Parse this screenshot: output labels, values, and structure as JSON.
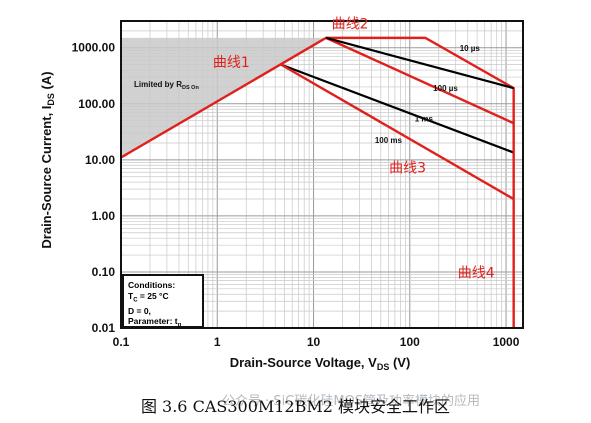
{
  "chart_data": {
    "type": "line",
    "xscale": "log",
    "yscale": "log",
    "xlim": [
      0.1,
      1500
    ],
    "ylim": [
      0.01,
      3000
    ],
    "xlabel": "Drain-Source Voltage, V",
    "xlabel_sub": "DS",
    "xlabel_unit": "(V)",
    "ylabel": "Drain-Source Current, I",
    "ylabel_sub": "DS",
    "ylabel_unit": "(A)",
    "x_ticks": [
      {
        "value": 0.1,
        "label": "0.1"
      },
      {
        "value": 1,
        "label": "1"
      },
      {
        "value": 10,
        "label": "10"
      },
      {
        "value": 100,
        "label": "100"
      },
      {
        "value": 1000,
        "label": "1000"
      }
    ],
    "y_ticks": [
      {
        "value": 1000,
        "label": "1000.00"
      },
      {
        "value": 100,
        "label": "100.00"
      },
      {
        "value": 10,
        "label": "10.00"
      },
      {
        "value": 1,
        "label": "1.00"
      },
      {
        "value": 0.1,
        "label": "0.10"
      },
      {
        "value": 0.01,
        "label": "0.01"
      }
    ],
    "grid": true,
    "rds_region": {
      "label": "Limited by R",
      "label_sub": "DS On",
      "points": [
        [
          0.1,
          1500
        ],
        [
          13.5,
          1500
        ],
        [
          0.1,
          11
        ]
      ]
    },
    "series": [
      {
        "name": "",
        "color": "#000000",
        "points": [
          [
            4.6,
            500
          ],
          [
            1200,
            13.5
          ]
        ]
      },
      {
        "name": "",
        "color": "#e0201c",
        "points": [
          [
            0.1,
            11
          ],
          [
            13.5,
            1500
          ],
          [
            145,
            1500
          ],
          [
            1200,
            190
          ],
          [
            1200,
            0.01
          ]
        ]
      },
      {
        "name": "",
        "color": "#e0201c",
        "points": [
          [
            13.5,
            1500
          ],
          [
            1200,
            45
          ]
        ]
      },
      {
        "name": "",
        "color": "#e0201c",
        "points": [
          [
            4.6,
            500
          ],
          [
            1200,
            2
          ]
        ]
      },
      {
        "name": "",
        "color": "#000000",
        "points": [
          [
            13.5,
            1500
          ],
          [
            1200,
            190
          ]
        ]
      }
    ],
    "annotations": [
      {
        "text": "10 µs",
        "x": 420,
        "y": 870
      },
      {
        "text": "100 µs",
        "x": 235,
        "y": 170
      },
      {
        "text": "1 ms",
        "x": 140,
        "y": 48
      },
      {
        "text": "100 ms",
        "x": 60,
        "y": 20
      }
    ],
    "red_labels": [
      {
        "text": "曲线1",
        "x": 1.4,
        "y": 450
      },
      {
        "text": "曲线2",
        "x": 24,
        "y": 2200
      },
      {
        "text": "曲线3",
        "x": 95,
        "y": 6
      },
      {
        "text": "曲线4",
        "x": 490,
        "y": 0.08
      }
    ],
    "conditions": {
      "title": "Conditions:",
      "lines": [
        "T",
        "D = 0,",
        "Parameter: t"
      ],
      "tc_sub": "C",
      "tc_value": " = 25 °C",
      "tp_sub": "p"
    }
  },
  "caption": "图 3.6 CAS300M12BM2 模块安全工作区",
  "watermark": "公众号 · SiC碳化硅MOS管及功率模块的应用"
}
